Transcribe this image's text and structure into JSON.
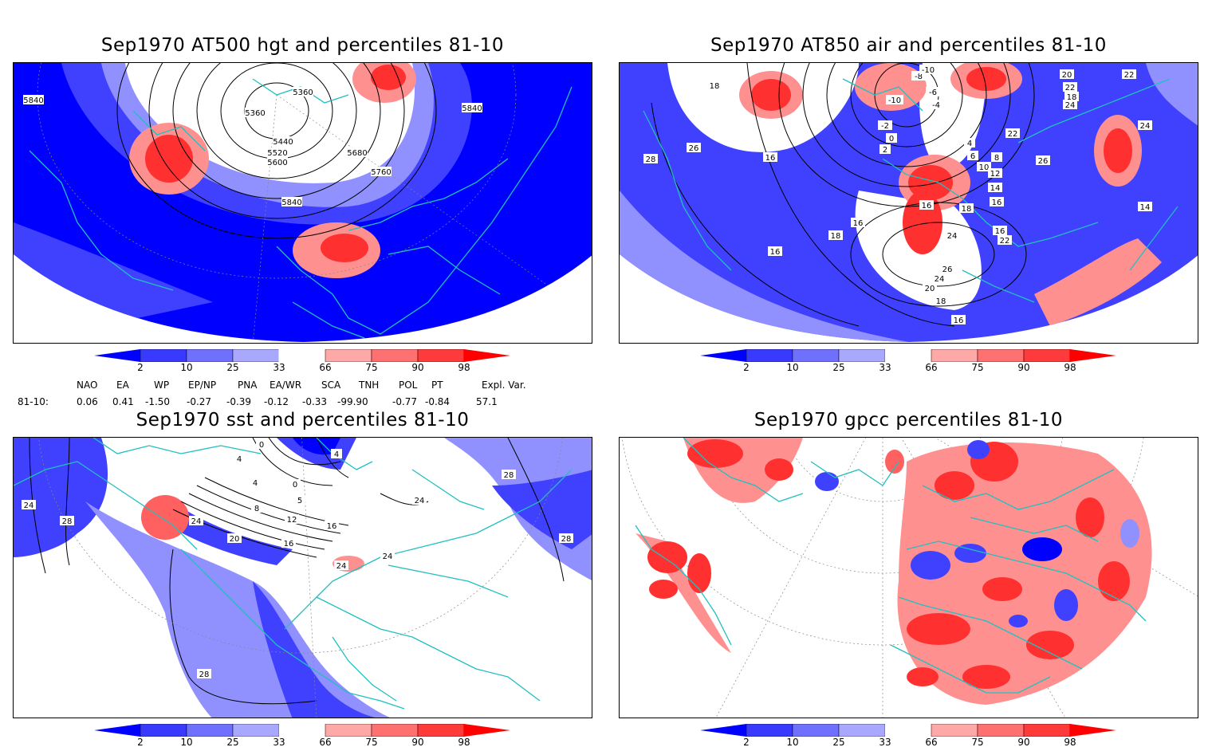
{
  "panels": [
    {
      "id": "p1",
      "title": "Sep1970 AT500 hgt and percentiles 81-10",
      "contour_labels": [
        "5840",
        "5360",
        "5360",
        "5440",
        "5520",
        "5600",
        "5680",
        "5760",
        "5840",
        "5840"
      ]
    },
    {
      "id": "p2",
      "title": "Sep1970 AT850 air and percentiles 81-10",
      "contour_labels": [
        "18",
        "-8",
        "-10",
        "-6",
        "-10",
        "-4",
        "-2",
        "0",
        "2",
        "4",
        "6",
        "8",
        "10",
        "12",
        "14",
        "16",
        "18",
        "20",
        "22",
        "24",
        "26",
        "22",
        "24",
        "28",
        "26",
        "16",
        "16",
        "18",
        "16",
        "14",
        "16",
        "16",
        "20",
        "18",
        "16",
        "22",
        "24",
        "26",
        "24",
        "22",
        "18"
      ]
    },
    {
      "id": "p3",
      "title": "Sep1970 sst and percentiles 81-10",
      "contour_labels": [
        "24",
        "28",
        "0",
        "4",
        "4",
        "0",
        "4",
        "8",
        "5",
        "12",
        "16",
        "16",
        "20",
        "24",
        "24",
        "24",
        "28",
        "28",
        "28",
        "24"
      ]
    },
    {
      "id": "p4",
      "title": "Sep1970 gpcc percentiles 81-10",
      "contour_labels": []
    }
  ],
  "colorbar": {
    "labels": [
      "2",
      "10",
      "25",
      "33",
      "66",
      "75",
      "90",
      "98"
    ],
    "colors": {
      "c1": "#0000ff",
      "c2": "#3a3aff",
      "c3": "#7070ff",
      "c4": "#a8a8ff",
      "w": "#ffffff",
      "c5": "#ffa8a8",
      "c6": "#ff7070",
      "c7": "#ff3a3a",
      "c8": "#ff0000"
    }
  },
  "indices": {
    "headers": [
      "NAO",
      "EA",
      "WP",
      "EP/NP",
      "PNA",
      "EA/WR",
      "SCA",
      "TNH",
      "POL",
      "PT",
      "Expl. Var."
    ],
    "row_label": "81-10:",
    "values": [
      "0.06",
      "0.41",
      "-1.50",
      "-0.27",
      "-0.39",
      "-0.12",
      "-0.33",
      "-99.90",
      "-0.77",
      "-0.84",
      "57.1"
    ]
  },
  "map_colors": {
    "coast": "#20c0c0",
    "blue": "#0000ff",
    "midblue": "#4040ff",
    "lightblue": "#9090ff",
    "red": "#ff3030",
    "lightred": "#ff9090"
  }
}
